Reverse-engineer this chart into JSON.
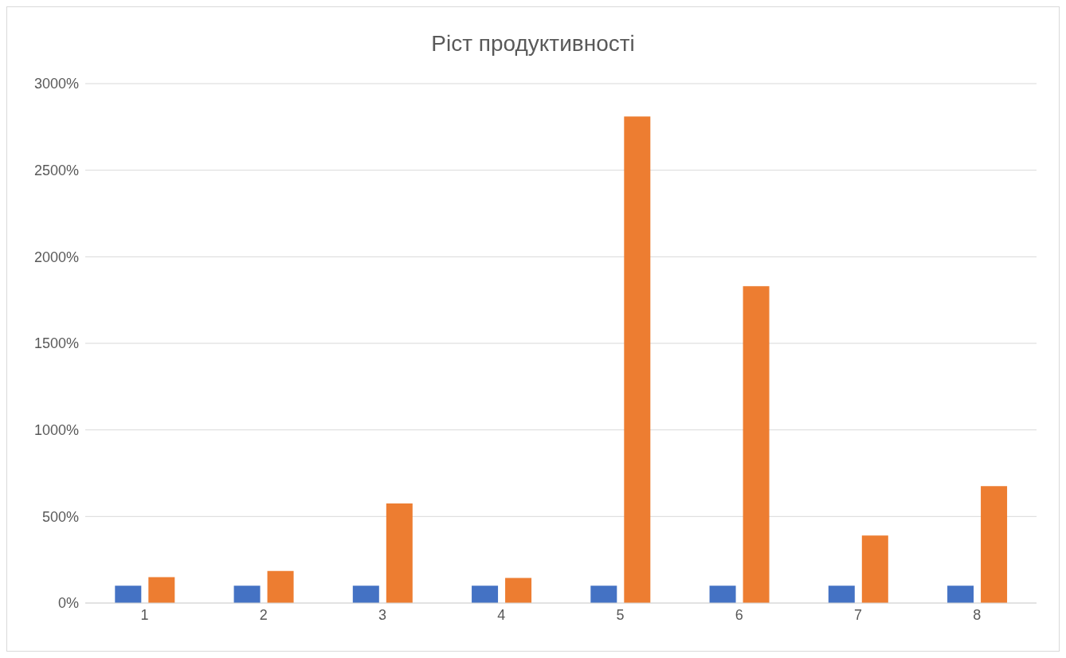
{
  "chart_data": {
    "type": "bar",
    "title": "Ріст продуктивності",
    "categories": [
      "1",
      "2",
      "3",
      "4",
      "5",
      "6",
      "7",
      "8"
    ],
    "series": [
      {
        "color": "#4472c4",
        "values": [
          100,
          100,
          100,
          100,
          100,
          100,
          100,
          100
        ]
      },
      {
        "color": "#ed7d31",
        "values": [
          150,
          185,
          575,
          145,
          2810,
          1830,
          390,
          675
        ]
      }
    ],
    "ylim": [
      0,
      3000
    ],
    "yticks": [
      {
        "value": 0,
        "label": "0%"
      },
      {
        "value": 500,
        "label": "500%"
      },
      {
        "value": 1000,
        "label": "1000%"
      },
      {
        "value": 1500,
        "label": "1500%"
      },
      {
        "value": 2000,
        "label": "2000%"
      },
      {
        "value": 2500,
        "label": "2500%"
      },
      {
        "value": 3000,
        "label": "3000%"
      }
    ],
    "grid": "y",
    "legend": false
  }
}
